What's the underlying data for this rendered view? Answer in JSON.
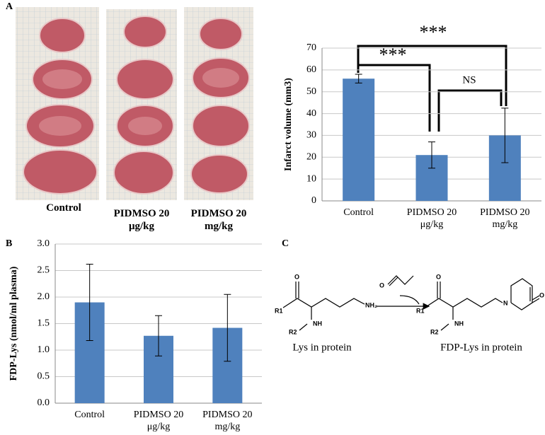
{
  "panel_labels": [
    "A",
    "B",
    "C"
  ],
  "photos": {
    "captions": [
      "Control",
      "PIDMSO 20 μg/kg",
      "PIDMSO 20 mg/kg"
    ]
  },
  "chart_data": [
    {
      "type": "bar",
      "y_label": "Infarct volume (mm3)",
      "categories": [
        "Control",
        "PIDMSO 20 μg/kg",
        "PIDMSO 20 mg/kg"
      ],
      "values": [
        56,
        21,
        30
      ],
      "errors": [
        2,
        6,
        12.5
      ],
      "color": "#4f81bd",
      "ylim": [
        0,
        70
      ],
      "yticks": [
        0,
        10,
        20,
        30,
        40,
        50,
        60,
        70
      ],
      "grid": true,
      "annotations": [
        "***",
        "***",
        "NS"
      ]
    },
    {
      "type": "bar",
      "y_label": "FDP-Lys (nmol/ml plasma)",
      "categories": [
        "Control",
        "PIDMSO 20 μg/kg",
        "PIDMSO 20 mg/kg"
      ],
      "values": [
        1.9,
        1.27,
        1.42
      ],
      "errors": [
        0.72,
        0.38,
        0.63
      ],
      "color": "#4f81bd",
      "ylim": [
        0,
        3
      ],
      "yticks": [
        {
          "value": 0,
          "label": "0.0"
        },
        0.5,
        {
          "value": 1,
          "label": "1.0"
        },
        1.5,
        {
          "value": 2,
          "label": "2.0"
        },
        2.5,
        {
          "value": 3,
          "label": "3.0"
        }
      ],
      "grid": true
    }
  ],
  "scheme": {
    "reagent_atoms": [
      "O"
    ],
    "lys_atoms": [
      "R1",
      "NH",
      "R2",
      "NH₂",
      "O"
    ],
    "product_atoms": [
      "R1",
      "NH",
      "R2",
      "N",
      "O",
      "O"
    ],
    "captions": [
      "Lys in protein",
      "FDP-Lys in protein"
    ]
  }
}
